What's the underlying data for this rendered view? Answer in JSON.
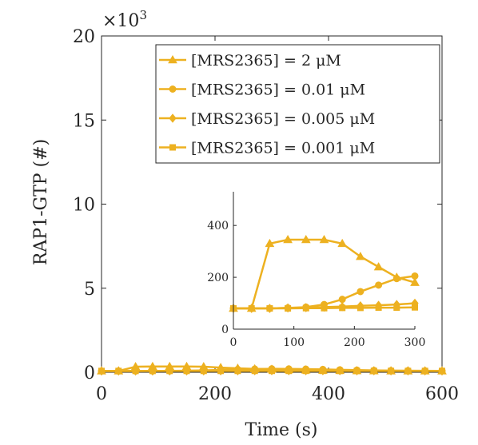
{
  "chart_data": {
    "type": "line",
    "xlabel": "Time (s)",
    "ylabel": "RAP1-GTP (#)",
    "multiplier": {
      "base": "×10",
      "exp": "3"
    },
    "xlim": [
      0,
      600
    ],
    "ylim": [
      0,
      20000
    ],
    "xticks": [
      0,
      200,
      400,
      600
    ],
    "xtick_labels": [
      "0",
      "200",
      "400",
      "600"
    ],
    "yticks": [
      0,
      5000,
      10000,
      15000,
      20000
    ],
    "ytick_labels": [
      "0",
      "5",
      "10",
      "15",
      "20"
    ],
    "color": "#EDB120",
    "legend_location": "top-right",
    "series": [
      {
        "name": "[MRS2365] = 2 μM",
        "marker": "triangle",
        "x": [
          0,
          30,
          60,
          90,
          120,
          150,
          180,
          210,
          240,
          270,
          300,
          330,
          360,
          390,
          420,
          450,
          480,
          510,
          540,
          570,
          600
        ],
        "y": [
          80,
          80,
          330,
          345,
          345,
          345,
          330,
          280,
          240,
          200,
          180,
          150,
          130,
          110,
          100,
          90,
          85,
          80,
          80,
          80,
          80
        ]
      },
      {
        "name": "[MRS2365] = 0.01 μM",
        "marker": "circle",
        "x": [
          0,
          30,
          60,
          90,
          120,
          150,
          180,
          210,
          240,
          270,
          300,
          330,
          360,
          390,
          420,
          450,
          480,
          510,
          540,
          570,
          600
        ],
        "y": [
          80,
          80,
          80,
          82,
          85,
          95,
          115,
          145,
          170,
          195,
          205,
          200,
          190,
          170,
          150,
          130,
          115,
          100,
          95,
          90,
          85
        ]
      },
      {
        "name": "[MRS2365] = 0.005 μM",
        "marker": "diamond",
        "x": [
          0,
          30,
          60,
          90,
          120,
          150,
          180,
          210,
          240,
          270,
          300,
          330,
          360,
          390,
          420,
          450,
          480,
          510,
          540,
          570,
          600
        ],
        "y": [
          80,
          80,
          80,
          82,
          83,
          85,
          87,
          90,
          92,
          95,
          100,
          100,
          100,
          98,
          95,
          93,
          90,
          88,
          85,
          83,
          82
        ]
      },
      {
        "name": "[MRS2365] = 0.001 μM",
        "marker": "square",
        "x": [
          0,
          30,
          60,
          90,
          120,
          150,
          180,
          210,
          240,
          270,
          300,
          330,
          360,
          390,
          420,
          450,
          480,
          510,
          540,
          570,
          600
        ],
        "y": [
          80,
          80,
          80,
          80,
          81,
          81,
          82,
          82,
          83,
          83,
          84,
          84,
          84,
          84,
          83,
          83,
          82,
          82,
          81,
          81,
          80
        ]
      }
    ],
    "inset": {
      "xlim": [
        0,
        300
      ],
      "ylim": [
        0,
        530
      ],
      "xticks": [
        0,
        100,
        200,
        300
      ],
      "xtick_labels": [
        "0",
        "100",
        "200",
        "300"
      ],
      "yticks": [
        0,
        200,
        400
      ],
      "ytick_labels": [
        "0",
        "200",
        "400"
      ]
    }
  }
}
